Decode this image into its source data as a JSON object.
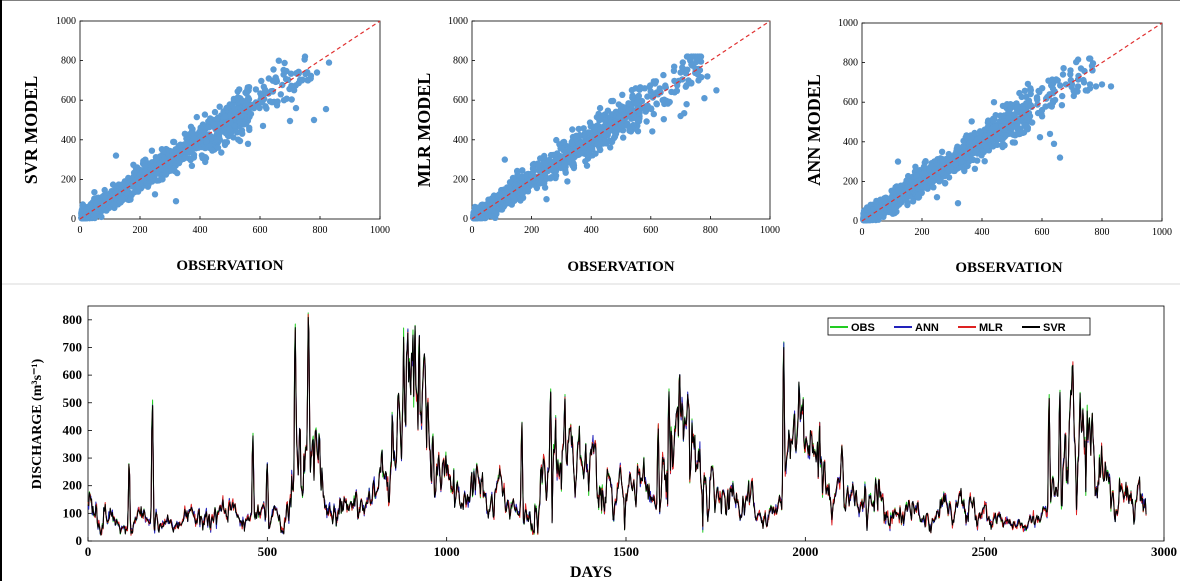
{
  "chart_data": [
    {
      "type": "scatter",
      "title": "",
      "xlabel": "OBSERVATION",
      "ylabel": "SVR MODEL",
      "xlim": [
        0,
        1000
      ],
      "ylim": [
        0,
        1000
      ],
      "xticks": [
        "0",
        "200",
        "400",
        "600",
        "800",
        "1000"
      ],
      "yticks": [
        "0",
        "200",
        "400",
        "600",
        "800",
        "1000"
      ],
      "reference_line": "1:1 dashed",
      "colors": {
        "points": "#5b9bd5",
        "line": "#e03030"
      },
      "seed": 11,
      "scatter_sd": 40,
      "outliers": [
        [
          820,
          555
        ],
        [
          780,
          500
        ],
        [
          700,
          495
        ],
        [
          720,
          560
        ],
        [
          640,
          590
        ],
        [
          560,
          380
        ],
        [
          610,
          470
        ],
        [
          580,
          560
        ],
        [
          450,
          540
        ],
        [
          320,
          90
        ],
        [
          250,
          125
        ],
        [
          120,
          320
        ],
        [
          680,
          600
        ],
        [
          740,
          700
        ],
        [
          790,
          740
        ],
        [
          760,
          700
        ],
        [
          830,
          790
        ],
        [
          500,
          450
        ],
        [
          350,
          430
        ],
        [
          460,
          360
        ]
      ]
    },
    {
      "type": "scatter",
      "title": "",
      "xlabel": "OBSERVATION",
      "ylabel": "MLR MODEL",
      "xlim": [
        0,
        1000
      ],
      "ylim": [
        0,
        1000
      ],
      "xticks": [
        "0",
        "200",
        "400",
        "600",
        "800",
        "1000"
      ],
      "yticks": [
        "0",
        "200",
        "400",
        "600",
        "800",
        "1000"
      ],
      "reference_line": "1:1 dashed",
      "colors": {
        "points": "#5b9bd5",
        "line": "#e03030"
      },
      "seed": 23,
      "scatter_sd": 38,
      "outliers": [
        [
          820,
          650
        ],
        [
          780,
          610
        ],
        [
          700,
          520
        ],
        [
          720,
          580
        ],
        [
          640,
          600
        ],
        [
          560,
          500
        ],
        [
          610,
          530
        ],
        [
          430,
          560
        ],
        [
          320,
          190
        ],
        [
          250,
          100
        ],
        [
          110,
          300
        ],
        [
          680,
          640
        ],
        [
          750,
          760
        ],
        [
          790,
          720
        ],
        [
          760,
          700
        ],
        [
          700,
          740
        ],
        [
          500,
          470
        ],
        [
          350,
          420
        ],
        [
          470,
          390
        ],
        [
          620,
          580
        ]
      ]
    },
    {
      "type": "scatter",
      "title": "",
      "xlabel": "OBSERVATION",
      "ylabel": "ANN MODEL",
      "xlim": [
        0,
        1000
      ],
      "ylim": [
        0,
        1000
      ],
      "xticks": [
        "0",
        "200",
        "400",
        "600",
        "800",
        "1000"
      ],
      "yticks": [
        "0",
        "200",
        "400",
        "600",
        "800",
        "1000"
      ],
      "reference_line": "1:1 dashed",
      "colors": {
        "points": "#5b9bd5",
        "line": "#e03030"
      },
      "seed": 37,
      "scatter_sd": 38,
      "outliers": [
        [
          830,
          680
        ],
        [
          800,
          690
        ],
        [
          760,
          690
        ],
        [
          740,
          700
        ],
        [
          720,
          680
        ],
        [
          700,
          690
        ],
        [
          680,
          690
        ],
        [
          640,
          390
        ],
        [
          660,
          320
        ],
        [
          560,
          530
        ],
        [
          440,
          600
        ],
        [
          320,
          90
        ],
        [
          250,
          120
        ],
        [
          120,
          300
        ],
        [
          730,
          770
        ],
        [
          600,
          560
        ],
        [
          500,
          470
        ],
        [
          350,
          420
        ],
        [
          470,
          390
        ],
        [
          780,
          680
        ]
      ]
    },
    {
      "type": "line",
      "title": "",
      "xlabel": "DAYS",
      "ylabel": "DISCHARGE (m³s⁻¹)",
      "xlim": [
        0,
        3000
      ],
      "ylim": [
        0,
        850
      ],
      "xticks": [
        "0",
        "500",
        "1000",
        "1500",
        "2000",
        "2500",
        "3000"
      ],
      "yticks": [
        "0",
        "100",
        "200",
        "300",
        "400",
        "500",
        "600",
        "700",
        "800"
      ],
      "legend_position": "top-right",
      "series": [
        {
          "name": "OBS",
          "color": "#22cc22"
        },
        {
          "name": "ANN",
          "color": "#2222bb"
        },
        {
          "name": "MLR",
          "color": "#dd2222"
        },
        {
          "name": "SVR",
          "color": "#000000"
        }
      ],
      "x_end": 2950,
      "base_points": [
        [
          0,
          120
        ],
        [
          40,
          110
        ],
        [
          80,
          60
        ],
        [
          120,
          50
        ],
        [
          160,
          90
        ],
        [
          200,
          70
        ],
        [
          250,
          60
        ],
        [
          300,
          80
        ],
        [
          350,
          100
        ],
        [
          400,
          90
        ],
        [
          440,
          60
        ],
        [
          480,
          100
        ],
        [
          540,
          80
        ],
        [
          570,
          180
        ],
        [
          600,
          320
        ],
        [
          640,
          250
        ],
        [
          660,
          130
        ],
        [
          700,
          100
        ],
        [
          750,
          110
        ],
        [
          800,
          120
        ],
        [
          840,
          200
        ],
        [
          870,
          420
        ],
        [
          900,
          600
        ],
        [
          930,
          500
        ],
        [
          950,
          330
        ],
        [
          980,
          260
        ],
        [
          1000,
          160
        ],
        [
          1050,
          150
        ],
        [
          1100,
          170
        ],
        [
          1150,
          160
        ],
        [
          1200,
          80
        ],
        [
          1230,
          110
        ],
        [
          1280,
          220
        ],
        [
          1320,
          360
        ],
        [
          1360,
          300
        ],
        [
          1390,
          190
        ],
        [
          1420,
          180
        ],
        [
          1450,
          170
        ],
        [
          1500,
          180
        ],
        [
          1550,
          170
        ],
        [
          1590,
          100
        ],
        [
          1620,
          300
        ],
        [
          1660,
          390
        ],
        [
          1700,
          330
        ],
        [
          1720,
          220
        ],
        [
          1750,
          150
        ],
        [
          1800,
          140
        ],
        [
          1850,
          110
        ],
        [
          1900,
          90
        ],
        [
          1940,
          140
        ],
        [
          1970,
          360
        ],
        [
          2000,
          350
        ],
        [
          2030,
          300
        ],
        [
          2060,
          190
        ],
        [
          2100,
          160
        ],
        [
          2150,
          140
        ],
        [
          2200,
          150
        ],
        [
          2250,
          110
        ],
        [
          2300,
          90
        ],
        [
          2350,
          70
        ],
        [
          2400,
          100
        ],
        [
          2450,
          110
        ],
        [
          2500,
          90
        ],
        [
          2550,
          60
        ],
        [
          2600,
          60
        ],
        [
          2650,
          60
        ],
        [
          2690,
          140
        ],
        [
          2730,
          300
        ],
        [
          2770,
          400
        ],
        [
          2800,
          310
        ],
        [
          2830,
          190
        ],
        [
          2870,
          150
        ],
        [
          2900,
          150
        ],
        [
          2950,
          130
        ]
      ],
      "peaks": [
        [
          115,
          280
        ],
        [
          180,
          510
        ],
        [
          460,
          390
        ],
        [
          500,
          280
        ],
        [
          578,
          785
        ],
        [
          615,
          825
        ],
        [
          645,
          390
        ],
        [
          820,
          330
        ],
        [
          890,
          700
        ],
        [
          912,
          780
        ],
        [
          1000,
          240
        ],
        [
          1210,
          430
        ],
        [
          1290,
          550
        ],
        [
          1330,
          530
        ],
        [
          1350,
          380
        ],
        [
          1590,
          420
        ],
        [
          1620,
          550
        ],
        [
          1650,
          600
        ],
        [
          1940,
          720
        ],
        [
          1955,
          400
        ],
        [
          2040,
          430
        ],
        [
          2680,
          530
        ],
        [
          2710,
          545
        ],
        [
          2740,
          460
        ],
        [
          2775,
          480
        ]
      ],
      "seed": 5
    }
  ]
}
